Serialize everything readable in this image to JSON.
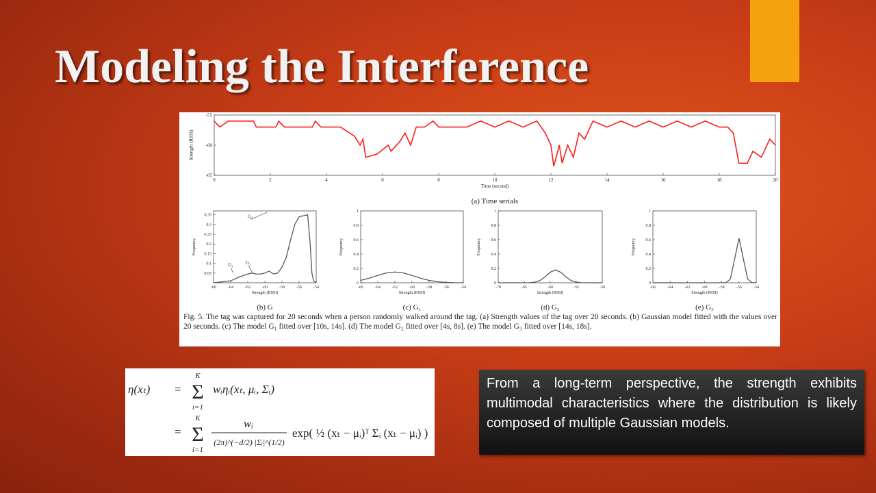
{
  "title": "Modeling the Interference",
  "figure": {
    "charts": [
      {
        "type": "line",
        "color": "#ff1a1a",
        "xlabel": "Time (second)",
        "ylabel": "Strength (RSSI)",
        "caption": "(a) Time serials",
        "xlim": [
          0,
          20
        ],
        "ylim": [
          -65,
          -55
        ],
        "xticks": [
          0,
          2,
          4,
          6,
          8,
          10,
          12,
          14,
          16,
          18,
          20
        ],
        "yticks": [
          -65,
          -60,
          -55
        ],
        "x": [
          0,
          0.2,
          0.5,
          1.4,
          1.5,
          2.2,
          2.3,
          2.5,
          3.5,
          3.6,
          3.8,
          4,
          4.5,
          5,
          5.2,
          5.3,
          5.4,
          5.8,
          6.2,
          6.3,
          6.6,
          6.8,
          7,
          7.2,
          7.5,
          7.8,
          8,
          9,
          9.5,
          10,
          10.5,
          11,
          11.5,
          11.8,
          12,
          12.1,
          12.3,
          12.4,
          12.6,
          12.8,
          13,
          13.2,
          13.5,
          14,
          14.5,
          15,
          15.5,
          16,
          16.5,
          17,
          17.5,
          18,
          18.3,
          18.5,
          18.7,
          19,
          19.2,
          19.5,
          19.8,
          20
        ],
        "values": [
          -56,
          -57,
          -56,
          -56,
          -57,
          -57,
          -56,
          -57,
          -57,
          -56,
          -57,
          -57,
          -57,
          -58.5,
          -60,
          -59,
          -62,
          -61.5,
          -60,
          -61,
          -59.5,
          -58,
          -60,
          -57,
          -57,
          -56,
          -57,
          -57,
          -56,
          -57,
          -56,
          -57,
          -56,
          -58,
          -60,
          -63.5,
          -60,
          -63,
          -60,
          -62,
          -58,
          -59,
          -56,
          -57,
          -56,
          -57,
          -56,
          -57,
          -56,
          -57,
          -56,
          -57,
          -57,
          -58,
          -63,
          -63,
          -61,
          -62,
          -59,
          -60
        ]
      },
      {
        "type": "line",
        "color": "#555555",
        "xlabel": "Strength (RSSI)",
        "ylabel": "Frequency",
        "caption": "(b) G",
        "xlim": [
          -66,
          -54
        ],
        "ylim": [
          0,
          0.37
        ],
        "xticks": [
          -66,
          -64,
          -62,
          -60,
          -58,
          -56,
          -54
        ],
        "yticks": [
          0.05,
          0.1,
          0.15,
          0.2,
          0.25,
          0.3,
          0.35
        ],
        "x": [
          -66,
          -65,
          -64,
          -63,
          -62,
          -61.5,
          -61,
          -60.5,
          -60,
          -59.5,
          -59,
          -58.5,
          -58,
          -57.5,
          -57,
          -56.5,
          -56,
          -55.5,
          -55,
          -54.7,
          -54.5,
          -54.3,
          -54
        ],
        "values": [
          0,
          0.005,
          0.01,
          0.03,
          0.045,
          0.05,
          0.045,
          0.045,
          0.05,
          0.06,
          0.045,
          0.05,
          0.08,
          0.13,
          0.22,
          0.3,
          0.34,
          0.345,
          0.35,
          0.2,
          0.05,
          0.01,
          0
        ],
        "annotations": [
          "G₁",
          "G₂",
          "G₃"
        ]
      },
      {
        "type": "line",
        "color": "#555555",
        "xlabel": "Strength (RSSI)",
        "ylabel": "Frequency",
        "caption": "(c) G₁",
        "xlim": [
          -66,
          -54
        ],
        "ylim": [
          0,
          1
        ],
        "xticks": [
          -66,
          -64,
          -62,
          -60,
          -58,
          -56,
          -54
        ],
        "yticks": [
          0,
          0.2,
          0.4,
          0.6,
          0.8,
          1
        ],
        "x": [
          -66,
          -65,
          -64,
          -63,
          -62,
          -61,
          -60,
          -59,
          -58,
          -57,
          -56,
          -55,
          -54
        ],
        "values": [
          0.033,
          0.064,
          0.103,
          0.137,
          0.15,
          0.137,
          0.103,
          0.064,
          0.033,
          0.014,
          0.005,
          0.001,
          0
        ]
      },
      {
        "type": "line",
        "color": "#555555",
        "xlabel": "Strength (RSSI)",
        "ylabel": "Frequency",
        "caption": "(d) G₂",
        "xlim": [
          -70,
          -50
        ],
        "ylim": [
          0,
          1
        ],
        "xticks": [
          -70,
          -65,
          -60,
          -55,
          -50
        ],
        "yticks": [
          0,
          0.2,
          0.4,
          0.6,
          0.8,
          1
        ],
        "x": [
          -70,
          -66,
          -64,
          -63,
          -62,
          -61,
          -60,
          -59,
          -58,
          -57,
          -56,
          -55,
          -54,
          -52,
          -50
        ],
        "values": [
          0,
          0,
          0.001,
          0.008,
          0.031,
          0.083,
          0.147,
          0.18,
          0.147,
          0.083,
          0.031,
          0.008,
          0.001,
          0,
          0
        ]
      },
      {
        "type": "line",
        "color": "#555555",
        "xlabel": "Strength (RSSI)",
        "ylabel": "Frequency",
        "caption": "(e) G₃",
        "xlim": [
          -66,
          -54
        ],
        "ylim": [
          0,
          1
        ],
        "xticks": [
          -66,
          -64,
          -62,
          -60,
          -58,
          -56,
          -54
        ],
        "yticks": [
          0,
          0.2,
          0.4,
          0.6,
          0.8,
          1
        ],
        "x": [
          -66,
          -58,
          -57.5,
          -57,
          -56.5,
          -56,
          -55.5,
          -55,
          -54.5,
          -54
        ],
        "values": [
          0,
          0,
          0.002,
          0.053,
          0.335,
          0.62,
          0.335,
          0.053,
          0.002,
          0
        ]
      }
    ],
    "caption": "Fig. 5.   The tag was captured for 20 seconds when a person randomly walked around the tag. (a) Strength values of the tag over 20 seconds. (b) Gaussian model fitted with the values over 20 seconds. (c) The model G₁ fitted over [10s, 14s]. (d) The model G₂ fitted over [4s, 8s]. (e) The model G₃ fitted over [14s, 18s]."
  },
  "equation": {
    "lhs": "η(xₜ)",
    "eq": "=",
    "sum": "Σ",
    "sum_upper": "K",
    "sum_lower": "i=1",
    "term1": "wᵢηᵢ(xₜ, μᵢ, Σᵢ)",
    "frac_num": "wᵢ",
    "frac_den": "(2π)^(−d/2) |Σᵢ|^(1/2)",
    "exp": "exp( ½ (xₜ − μᵢ)ᵀ Σᵢ (xₜ − μᵢ) )"
  },
  "callout": "From a long-term perspective, the strength exhibits multimodal characteristics where the distribution is likely composed of multiple Gaussian models."
}
